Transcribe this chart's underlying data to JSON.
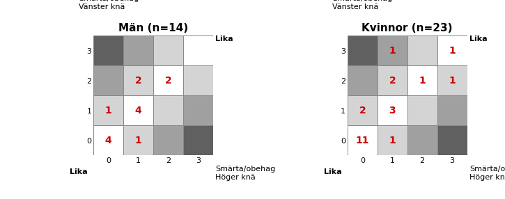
{
  "men_title": "Män (n=14)",
  "women_title": "Kvinnor (n=23)",
  "xlabel_right": "Smärta/obehag\nHöger knä",
  "ylabel_left": "Smärta/obehag\nVänster knä",
  "lika": "Lika",
  "tick_labels": [
    "0",
    "1",
    "2",
    "3"
  ],
  "men_values": [
    [
      4,
      1,
      0,
      0
    ],
    [
      1,
      4,
      0,
      0
    ],
    [
      0,
      2,
      2,
      0
    ],
    [
      0,
      0,
      0,
      0
    ]
  ],
  "women_values": [
    [
      11,
      1,
      0,
      0
    ],
    [
      2,
      3,
      0,
      0
    ],
    [
      0,
      2,
      1,
      1
    ],
    [
      0,
      1,
      0,
      1
    ]
  ],
  "colors": {
    "0": "#ffffff",
    "1": "#d4d4d4",
    "2": "#a0a0a0",
    "3": "#606060"
  },
  "number_color": "#cc0000",
  "bg_color": "#ffffff",
  "number_fontsize": 10,
  "title_fontsize": 11,
  "label_fontsize": 8,
  "tick_fontsize": 8,
  "lika_fontsize": 8
}
